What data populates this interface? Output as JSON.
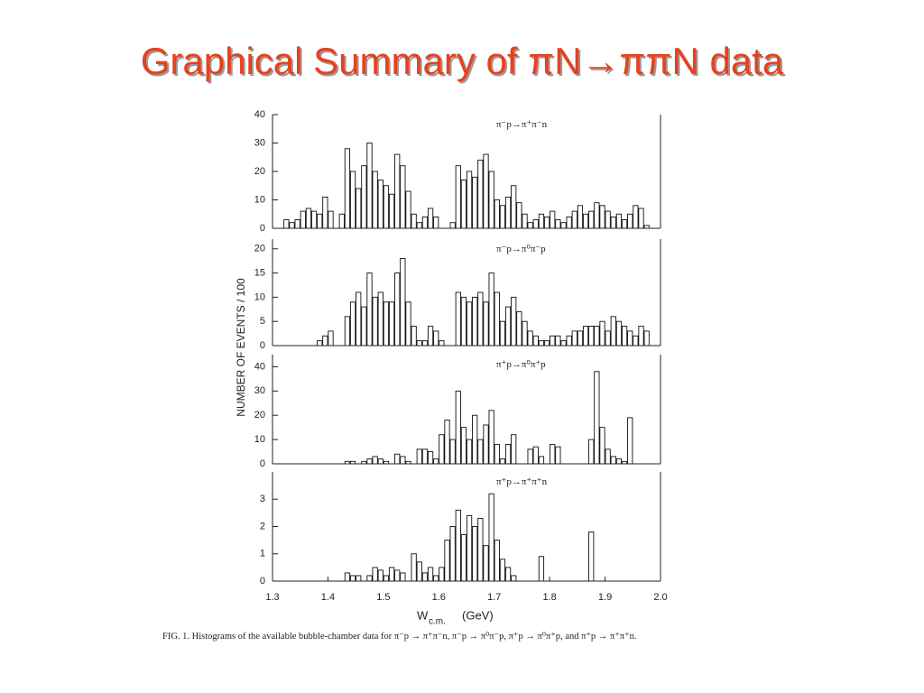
{
  "title": "Graphical Summary of πN→ππN data",
  "figure": {
    "ylabel": "NUMBER OF EVENTS / 100",
    "xlabel": "W",
    "xlabel_subscript": "c.m.",
    "xlabel_unit": "(GeV)",
    "caption": "FIG. 1. Histograms of the available bubble-chamber data for π⁻p → π⁺π⁻n, π⁻p → π⁰π⁻p, π⁺p → π⁰π⁺p, and π⁺p → π⁺π⁺n."
  },
  "chart_data": [
    {
      "type": "histogram",
      "title": "π⁻p→π⁺π⁻n",
      "color": "#ffffff",
      "edgecolor": "#111111",
      "bins": [
        1.3,
        1.31,
        1.32,
        1.33,
        1.34,
        1.35,
        1.36,
        1.37,
        1.38,
        1.39,
        1.4,
        1.41,
        1.42,
        1.43,
        1.44,
        1.45,
        1.46,
        1.47,
        1.48,
        1.49,
        1.5,
        1.51,
        1.52,
        1.53,
        1.54,
        1.55,
        1.56,
        1.57,
        1.58,
        1.59,
        1.6,
        1.61,
        1.62,
        1.63,
        1.64,
        1.65,
        1.66,
        1.67,
        1.68,
        1.69,
        1.7,
        1.71,
        1.72,
        1.73,
        1.74,
        1.75,
        1.76,
        1.77,
        1.78,
        1.79,
        1.8,
        1.81,
        1.82,
        1.83,
        1.84,
        1.85,
        1.86,
        1.87,
        1.88,
        1.89,
        1.9,
        1.91,
        1.92,
        1.93,
        1.94,
        1.95,
        1.96,
        1.97,
        1.98,
        1.99,
        2.0
      ],
      "values": [
        0,
        0,
        3,
        2,
        3,
        6,
        7,
        6,
        5,
        11,
        6,
        0,
        5,
        28,
        20,
        14,
        22,
        30,
        20,
        17,
        15,
        12,
        26,
        22,
        13,
        5,
        2,
        4,
        7,
        4,
        0,
        0,
        2,
        22,
        17,
        20,
        18,
        24,
        26,
        20,
        10,
        8,
        11,
        15,
        9,
        5,
        2,
        3,
        5,
        4,
        6,
        3,
        2,
        4,
        6,
        8,
        5,
        6,
        9,
        8,
        6,
        4,
        5,
        3,
        5,
        8,
        7,
        1,
        0,
        0
      ],
      "xlim": [
        1.3,
        2.0
      ],
      "ylim": [
        0,
        40
      ],
      "yticks": [
        0,
        10,
        20,
        30,
        40
      ]
    },
    {
      "type": "histogram",
      "title": "π⁻p→π⁰π⁻p",
      "color": "#ffffff",
      "edgecolor": "#111111",
      "bins": [
        1.3,
        1.31,
        1.32,
        1.33,
        1.34,
        1.35,
        1.36,
        1.37,
        1.38,
        1.39,
        1.4,
        1.41,
        1.42,
        1.43,
        1.44,
        1.45,
        1.46,
        1.47,
        1.48,
        1.49,
        1.5,
        1.51,
        1.52,
        1.53,
        1.54,
        1.55,
        1.56,
        1.57,
        1.58,
        1.59,
        1.6,
        1.61,
        1.62,
        1.63,
        1.64,
        1.65,
        1.66,
        1.67,
        1.68,
        1.69,
        1.7,
        1.71,
        1.72,
        1.73,
        1.74,
        1.75,
        1.76,
        1.77,
        1.78,
        1.79,
        1.8,
        1.81,
        1.82,
        1.83,
        1.84,
        1.85,
        1.86,
        1.87,
        1.88,
        1.89,
        1.9,
        1.91,
        1.92,
        1.93,
        1.94,
        1.95,
        1.96,
        1.97,
        1.98,
        1.99,
        2.0
      ],
      "values": [
        0,
        0,
        0,
        0,
        0,
        0,
        0,
        0,
        1,
        2,
        3,
        0,
        0,
        6,
        9,
        11,
        8,
        15,
        10,
        11,
        9,
        9,
        15,
        18,
        9,
        4,
        1,
        1,
        4,
        3,
        1,
        0,
        0,
        11,
        10,
        9,
        10,
        11,
        9,
        15,
        11,
        5,
        8,
        10,
        7,
        5,
        3,
        2,
        1,
        1,
        2,
        2,
        1,
        2,
        3,
        3,
        4,
        4,
        4,
        5,
        3,
        6,
        5,
        4,
        3,
        2,
        4,
        3,
        0,
        0
      ],
      "xlim": [
        1.3,
        2.0
      ],
      "ylim": [
        0,
        22
      ],
      "yticks": [
        0,
        5,
        10,
        15,
        20
      ]
    },
    {
      "type": "histogram",
      "title": "π⁺p→π⁰π⁺p",
      "color": "#ffffff",
      "edgecolor": "#111111",
      "bins": [
        1.3,
        1.31,
        1.32,
        1.33,
        1.34,
        1.35,
        1.36,
        1.37,
        1.38,
        1.39,
        1.4,
        1.41,
        1.42,
        1.43,
        1.44,
        1.45,
        1.46,
        1.47,
        1.48,
        1.49,
        1.5,
        1.51,
        1.52,
        1.53,
        1.54,
        1.55,
        1.56,
        1.57,
        1.58,
        1.59,
        1.6,
        1.61,
        1.62,
        1.63,
        1.64,
        1.65,
        1.66,
        1.67,
        1.68,
        1.69,
        1.7,
        1.71,
        1.72,
        1.73,
        1.74,
        1.75,
        1.76,
        1.77,
        1.78,
        1.79,
        1.8,
        1.81,
        1.82,
        1.83,
        1.84,
        1.85,
        1.86,
        1.87,
        1.88,
        1.89,
        1.9,
        1.91,
        1.92,
        1.93,
        1.94,
        1.95,
        1.96,
        1.97,
        1.98,
        1.99,
        2.0
      ],
      "values": [
        0,
        0,
        0,
        0,
        0,
        0,
        0,
        0,
        0,
        0,
        0,
        0,
        0,
        1,
        1,
        0,
        1,
        2,
        3,
        2,
        1,
        0,
        4,
        3,
        1,
        0,
        6,
        6,
        5,
        2,
        12,
        18,
        10,
        30,
        15,
        10,
        20,
        10,
        16,
        22,
        8,
        2,
        8,
        12,
        0,
        0,
        6,
        7,
        3,
        0,
        8,
        7,
        0,
        0,
        0,
        0,
        0,
        10,
        38,
        15,
        6,
        3,
        2,
        1,
        19,
        0,
        0,
        0,
        0,
        0
      ],
      "xlim": [
        1.3,
        2.0
      ],
      "ylim": [
        0,
        45
      ],
      "yticks": [
        0,
        10,
        20,
        30,
        40
      ]
    },
    {
      "type": "histogram",
      "title": "π⁺p→π⁺π⁺n",
      "color": "#ffffff",
      "edgecolor": "#111111",
      "bins": [
        1.3,
        1.31,
        1.32,
        1.33,
        1.34,
        1.35,
        1.36,
        1.37,
        1.38,
        1.39,
        1.4,
        1.41,
        1.42,
        1.43,
        1.44,
        1.45,
        1.46,
        1.47,
        1.48,
        1.49,
        1.5,
        1.51,
        1.52,
        1.53,
        1.54,
        1.55,
        1.56,
        1.57,
        1.58,
        1.59,
        1.6,
        1.61,
        1.62,
        1.63,
        1.64,
        1.65,
        1.66,
        1.67,
        1.68,
        1.69,
        1.7,
        1.71,
        1.72,
        1.73,
        1.74,
        1.75,
        1.76,
        1.77,
        1.78,
        1.79,
        1.8,
        1.81,
        1.82,
        1.83,
        1.84,
        1.85,
        1.86,
        1.87,
        1.88,
        1.89,
        1.9,
        1.91,
        1.92,
        1.93,
        1.94,
        1.95,
        1.96,
        1.97,
        1.98,
        1.99,
        2.0
      ],
      "values": [
        0,
        0,
        0,
        0,
        0,
        0,
        0,
        0,
        0,
        0,
        0,
        0,
        0,
        0.3,
        0.2,
        0.2,
        0,
        0.2,
        0.5,
        0.4,
        0.2,
        0.5,
        0.4,
        0.3,
        0,
        1,
        0.7,
        0.3,
        0.5,
        0.2,
        0.5,
        1.5,
        2,
        2.6,
        1.7,
        2.4,
        2,
        2.3,
        1.3,
        3.2,
        1.5,
        0.8,
        0.5,
        0.2,
        0,
        0,
        0,
        0,
        0.9,
        0,
        0,
        0,
        0,
        0,
        0,
        0,
        0,
        1.8,
        0,
        0,
        0,
        0,
        0,
        0,
        0,
        0,
        0,
        0,
        0,
        0
      ],
      "xlim": [
        1.3,
        2.0
      ],
      "ylim": [
        0,
        4
      ],
      "yticks": [
        0,
        1,
        2,
        3
      ],
      "xticks": [
        1.3,
        1.4,
        1.5,
        1.6,
        1.7,
        1.8,
        1.9,
        {
          "value": 2,
          "label": "2.0"
        }
      ]
    }
  ]
}
